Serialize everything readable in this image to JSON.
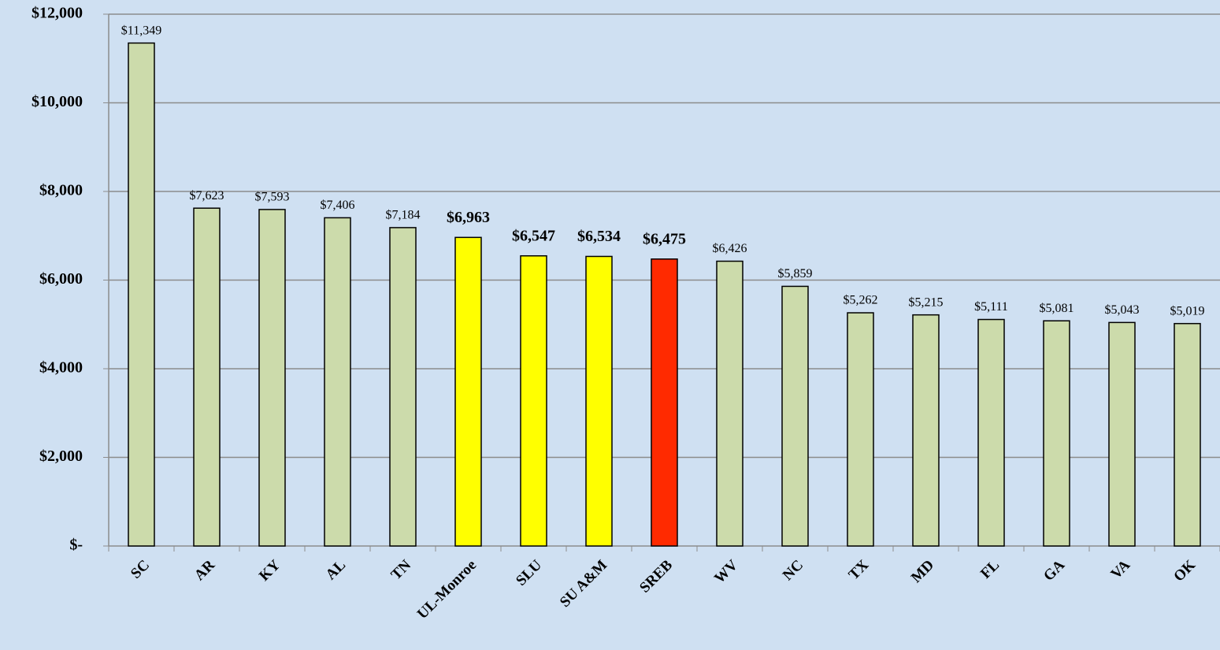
{
  "chart_data": {
    "type": "bar",
    "categories": [
      "SC",
      "AR",
      "KY",
      "AL",
      "TN",
      "UL-Monroe",
      "SLU",
      "SU A&M",
      "SREB",
      "WV",
      "NC",
      "TX",
      "MD",
      "FL",
      "GA",
      "VA",
      "OK"
    ],
    "values": [
      11349,
      7623,
      7593,
      7406,
      7184,
      6963,
      6547,
      6534,
      6475,
      6426,
      5859,
      5262,
      5215,
      5111,
      5081,
      5043,
      5019
    ],
    "value_labels": [
      "$11,349",
      "$7,623",
      "$7,593",
      "$7,406",
      "$7,184",
      "$6,963",
      "$6,547",
      "$6,534",
      "$6,475",
      "$6,426",
      "$5,859",
      "$5,262",
      "$5,215",
      "$5,111",
      "$5,081",
      "$5,043",
      "$5,019"
    ],
    "colors": [
      "#ccdbab",
      "#ccdbab",
      "#ccdbab",
      "#ccdbab",
      "#ccdbab",
      "#ffff00",
      "#ffff00",
      "#ffff00",
      "#ff2a00",
      "#ccdbab",
      "#ccdbab",
      "#ccdbab",
      "#ccdbab",
      "#ccdbab",
      "#ccdbab",
      "#ccdbab",
      "#ccdbab"
    ],
    "value_label_colors": [
      "#000000",
      "#000000",
      "#000000",
      "#000000",
      "#000000",
      "#000000",
      "#000000",
      "#000000",
      "#ff0000",
      "#000000",
      "#000000",
      "#000000",
      "#000000",
      "#000000",
      "#000000",
      "#000000",
      "#000000"
    ],
    "value_label_bold": [
      false,
      false,
      false,
      false,
      false,
      true,
      true,
      true,
      true,
      false,
      false,
      false,
      false,
      false,
      false,
      false,
      false
    ],
    "ylim": [
      0,
      12000
    ],
    "yticks": [
      {
        "value": 0,
        "label": "$-"
      },
      {
        "value": 2000,
        "label": "$2,000"
      },
      {
        "value": 4000,
        "label": "$4,000"
      },
      {
        "value": 6000,
        "label": "$6,000"
      },
      {
        "value": 8000,
        "label": "$8,000"
      },
      {
        "value": 10000,
        "label": "$10,000"
      },
      {
        "value": 12000,
        "label": "$12,000"
      }
    ],
    "grid": true
  }
}
